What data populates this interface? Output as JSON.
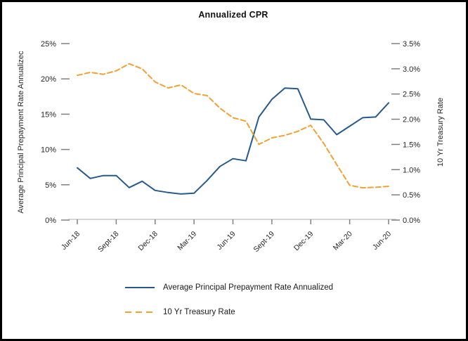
{
  "frame": {
    "background": "#ffffff",
    "border_color": "#000000"
  },
  "chart_data": {
    "type": "line",
    "title": "Annualized CPR",
    "categories": [
      "Jun-18",
      "Jul-18",
      "Aug-18",
      "Sep-18",
      "Oct-18",
      "Nov-18",
      "Dec-18",
      "Jan-19",
      "Feb-19",
      "Mar-19",
      "Apr-19",
      "May-19",
      "Jun-19",
      "Jul-19",
      "Aug-19",
      "Sep-19",
      "Oct-19",
      "Nov-19",
      "Dec-19",
      "Jan-20",
      "Feb-20",
      "Mar-20",
      "Apr-20",
      "May-20",
      "Jun-20"
    ],
    "x_tick_labels": [
      "Jun-18",
      "Sept-18",
      "Dec-18",
      "Mar-19",
      "Jun-19",
      "Sept-19",
      "Dec-19",
      "Mar-20",
      "Jun-20"
    ],
    "x_tick_every_n_categories": 3,
    "series": [
      {
        "name": "Average Principal Prepayment Rate Annualized",
        "axis": "left",
        "style": "solid",
        "color": "#27598B",
        "values": [
          7.4,
          5.9,
          6.3,
          6.3,
          4.6,
          5.5,
          4.2,
          3.9,
          3.7,
          3.8,
          5.6,
          7.6,
          8.7,
          8.4,
          14.6,
          17.1,
          18.7,
          18.6,
          14.3,
          14.2,
          12.1,
          13.3,
          14.5,
          14.6,
          16.6
        ]
      },
      {
        "name": "10 Yr Treasury Rate",
        "axis": "right",
        "style": "dashed",
        "color": "#F0A232",
        "values": [
          2.87,
          2.93,
          2.89,
          2.96,
          3.1,
          3.0,
          2.74,
          2.62,
          2.68,
          2.51,
          2.47,
          2.22,
          2.03,
          1.96,
          1.5,
          1.63,
          1.68,
          1.76,
          1.88,
          1.52,
          1.1,
          0.69,
          0.64,
          0.65,
          0.67
        ]
      }
    ],
    "left_axis": {
      "title": "Average Principal Prepayment Rate Annualizec",
      "min": 0,
      "max": 25,
      "step": 5,
      "tick_labels": [
        "0%",
        "5%",
        "10%",
        "15%",
        "20%",
        "25%"
      ]
    },
    "right_axis": {
      "title": "10 Yr Treasury Rate",
      "min": 0,
      "max": 3.5,
      "step": 0.5,
      "tick_labels": [
        "0.0%",
        "0.5%",
        "1.0%",
        "1.5%",
        "2.0%",
        "2.5%",
        "3.0%",
        "3.5%"
      ]
    },
    "grid": false,
    "legend_position": "bottom",
    "colors": {
      "axis_line": "#D6D6D6",
      "tick_mark": "#808080",
      "tick_label": "#262626"
    }
  },
  "legend": {
    "items": [
      {
        "label": "Average Principal Prepayment Rate Annualized"
      },
      {
        "label": "10 Yr Treasury Rate"
      }
    ]
  }
}
